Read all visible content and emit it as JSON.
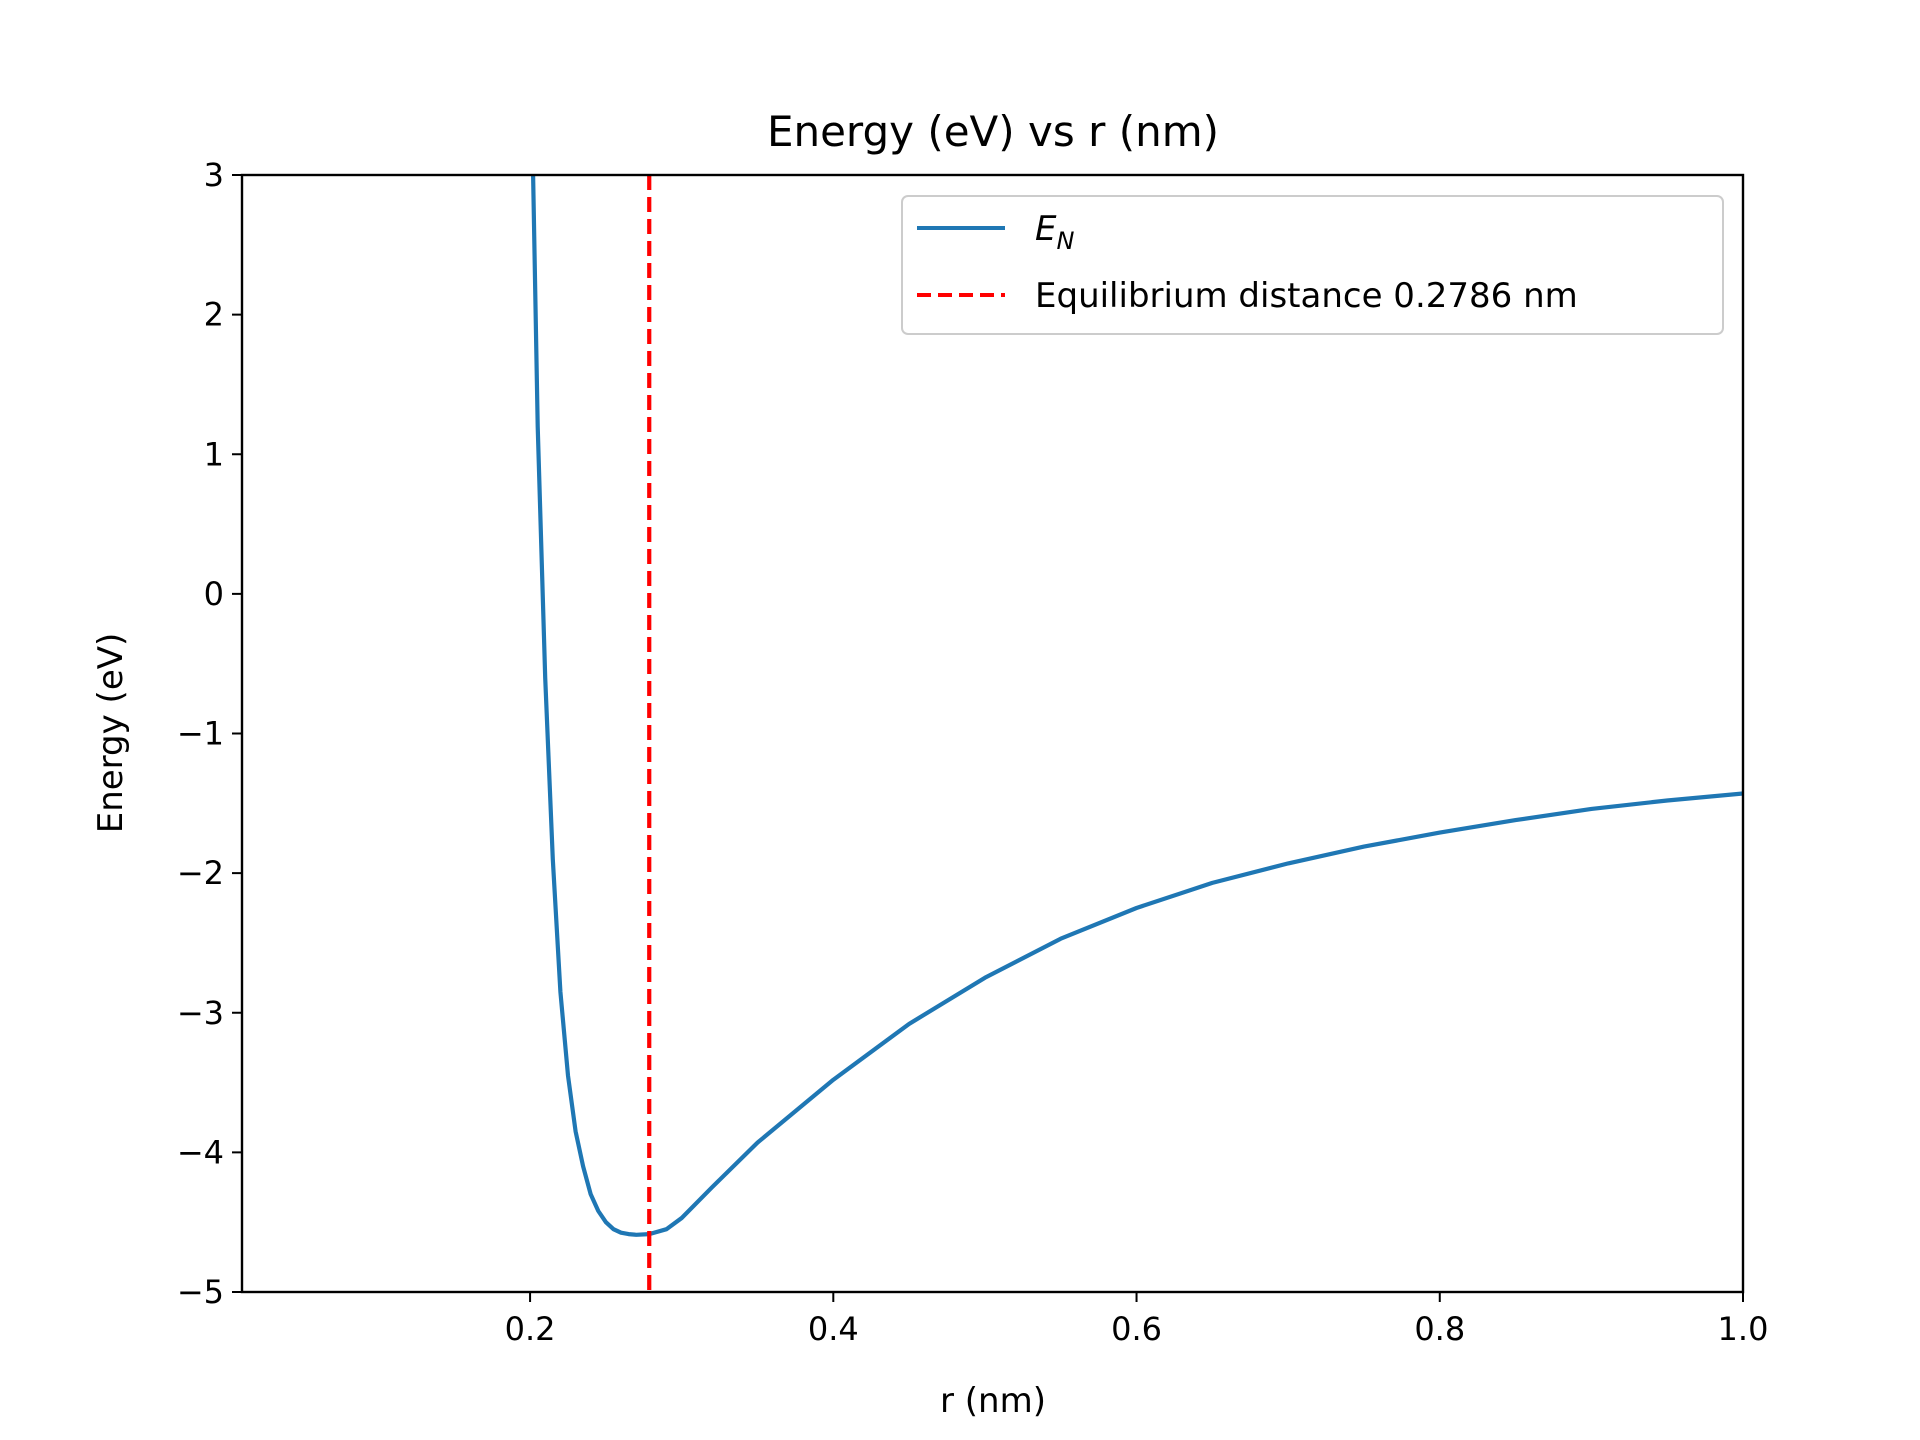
{
  "chart_data": {
    "type": "line",
    "title": "Energy (eV) vs r (nm)",
    "xlabel": "r (nm)",
    "ylabel": "Energy (eV)",
    "xlim": [
      0.01,
      1.0
    ],
    "ylim": [
      -5,
      3
    ],
    "xticks": [
      0.2,
      0.4,
      0.6,
      0.8,
      1.0
    ],
    "xtick_labels": [
      "0.2",
      "0.4",
      "0.6",
      "0.8",
      "1.0"
    ],
    "yticks": [
      -5,
      -4,
      -3,
      -2,
      -1,
      0,
      1,
      2,
      3
    ],
    "ytick_labels": [
      "−5",
      "−4",
      "−3",
      "−2",
      "−1",
      "0",
      "1",
      "2",
      "3"
    ],
    "grid": false,
    "legend_position": "top-right",
    "series": [
      {
        "name": "E_N",
        "legend_main": "E",
        "legend_sub": "N",
        "color": "#1f77b4",
        "style": "solid",
        "x": [
          0.202,
          0.205,
          0.21,
          0.215,
          0.22,
          0.225,
          0.23,
          0.235,
          0.24,
          0.245,
          0.25,
          0.255,
          0.26,
          0.265,
          0.27,
          0.2786,
          0.29,
          0.3,
          0.32,
          0.35,
          0.4,
          0.45,
          0.5,
          0.55,
          0.6,
          0.65,
          0.7,
          0.75,
          0.8,
          0.85,
          0.9,
          0.95,
          1.0
        ],
        "y": [
          3.0,
          1.2,
          -0.6,
          -1.9,
          -2.85,
          -3.45,
          -3.85,
          -4.1,
          -4.3,
          -4.42,
          -4.5,
          -4.55,
          -4.575,
          -4.585,
          -4.59,
          -4.585,
          -4.55,
          -4.47,
          -4.25,
          -3.93,
          -3.48,
          -3.08,
          -2.75,
          -2.47,
          -2.25,
          -2.07,
          -1.93,
          -1.81,
          -1.71,
          -1.62,
          -1.54,
          -1.48,
          -1.43
        ]
      },
      {
        "name": "Equilibrium distance 0.2786 nm",
        "color": "#ff0000",
        "style": "dashed",
        "vline_x": 0.2786
      }
    ]
  }
}
